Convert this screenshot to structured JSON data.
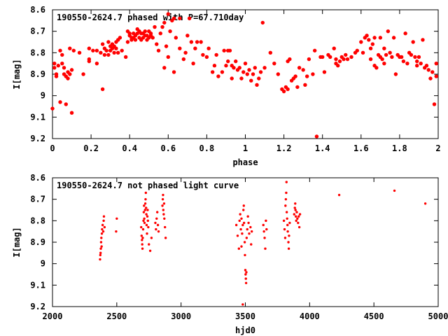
{
  "chart_data": [
    {
      "type": "scatter",
      "title": "190550-2624.7 phased with P=67.710day",
      "xlabel": "phase",
      "ylabel": "I[mag]",
      "xlim": [
        0,
        2
      ],
      "ylim": [
        9.2,
        8.6
      ],
      "y_inverted": true,
      "xticks": [
        "0",
        "0.2",
        "0.4",
        "0.6",
        "0.8",
        "1",
        "1.2",
        "1.4",
        "1.6",
        "1.8",
        "2"
      ],
      "xtick_values": [
        0,
        0.2,
        0.4,
        0.6,
        0.8,
        1.0,
        1.2,
        1.4,
        1.6,
        1.8,
        2.0
      ],
      "yticks": [
        "8.6",
        "8.7",
        "8.8",
        "8.9",
        "9",
        "9.1",
        "9.2"
      ],
      "ytick_values": [
        8.6,
        8.7,
        8.8,
        8.9,
        9.0,
        9.1,
        9.2
      ],
      "marker_color": "#ff0000",
      "marker": "filled-dot",
      "points": [
        [
          0.0,
          9.06
        ],
        [
          0.01,
          8.85
        ],
        [
          0.01,
          8.87
        ],
        [
          0.02,
          8.9
        ],
        [
          0.02,
          8.91
        ],
        [
          0.03,
          8.86
        ],
        [
          0.04,
          9.03
        ],
        [
          0.04,
          8.79
        ],
        [
          0.05,
          8.85
        ],
        [
          0.05,
          8.81
        ],
        [
          0.06,
          8.87
        ],
        [
          0.06,
          8.9
        ],
        [
          0.07,
          9.04
        ],
        [
          0.07,
          8.91
        ],
        [
          0.08,
          8.92
        ],
        [
          0.08,
          8.89
        ],
        [
          0.09,
          8.78
        ],
        [
          0.09,
          8.9
        ],
        [
          0.1,
          9.08
        ],
        [
          0.1,
          8.88
        ],
        [
          0.11,
          8.79
        ],
        [
          0.14,
          8.8
        ],
        [
          0.16,
          8.9
        ],
        [
          0.19,
          8.78
        ],
        [
          0.19,
          8.83
        ],
        [
          0.19,
          8.84
        ],
        [
          0.21,
          8.79
        ],
        [
          0.23,
          8.79
        ],
        [
          0.23,
          8.85
        ],
        [
          0.25,
          8.8
        ],
        [
          0.26,
          8.97
        ],
        [
          0.26,
          8.76
        ],
        [
          0.27,
          8.81
        ],
        [
          0.27,
          8.78
        ],
        [
          0.28,
          8.79
        ],
        [
          0.29,
          8.75
        ],
        [
          0.29,
          8.81
        ],
        [
          0.3,
          8.77
        ],
        [
          0.3,
          8.79
        ],
        [
          0.31,
          8.76
        ],
        [
          0.31,
          8.78
        ],
        [
          0.32,
          8.8
        ],
        [
          0.32,
          8.77
        ],
        [
          0.33,
          8.75
        ],
        [
          0.33,
          8.78
        ],
        [
          0.34,
          8.8
        ],
        [
          0.34,
          8.74
        ],
        [
          0.35,
          8.73
        ],
        [
          0.36,
          8.79
        ],
        [
          0.38,
          8.82
        ],
        [
          0.39,
          8.75
        ],
        [
          0.39,
          8.7
        ],
        [
          0.4,
          8.71
        ],
        [
          0.4,
          8.72
        ],
        [
          0.41,
          8.73
        ],
        [
          0.41,
          8.74
        ],
        [
          0.42,
          8.71
        ],
        [
          0.42,
          8.73
        ],
        [
          0.43,
          8.74
        ],
        [
          0.43,
          8.72
        ],
        [
          0.44,
          8.69
        ],
        [
          0.44,
          8.71
        ],
        [
          0.45,
          8.7
        ],
        [
          0.45,
          8.73
        ],
        [
          0.46,
          8.74
        ],
        [
          0.46,
          8.71
        ],
        [
          0.47,
          8.73
        ],
        [
          0.47,
          8.71
        ],
        [
          0.48,
          8.72
        ],
        [
          0.48,
          8.7
        ],
        [
          0.49,
          8.72
        ],
        [
          0.49,
          8.74
        ],
        [
          0.5,
          8.7
        ],
        [
          0.5,
          8.73
        ],
        [
          0.51,
          8.71
        ],
        [
          0.51,
          8.72
        ],
        [
          0.52,
          8.73
        ],
        [
          0.53,
          8.68
        ],
        [
          0.54,
          8.76
        ],
        [
          0.55,
          8.79
        ],
        [
          0.56,
          8.71
        ],
        [
          0.57,
          8.68
        ],
        [
          0.58,
          8.87
        ],
        [
          0.58,
          8.66
        ],
        [
          0.59,
          8.77
        ],
        [
          0.6,
          8.82
        ],
        [
          0.6,
          8.62
        ],
        [
          0.61,
          8.7
        ],
        [
          0.62,
          8.65
        ],
        [
          0.63,
          8.64
        ],
        [
          0.63,
          8.89
        ],
        [
          0.64,
          8.73
        ],
        [
          0.66,
          8.64
        ],
        [
          0.66,
          8.78
        ],
        [
          0.68,
          8.83
        ],
        [
          0.69,
          8.8
        ],
        [
          0.7,
          8.72
        ],
        [
          0.71,
          8.64
        ],
        [
          0.72,
          8.75
        ],
        [
          0.73,
          8.85
        ],
        [
          0.74,
          8.78
        ],
        [
          0.75,
          8.75
        ],
        [
          0.77,
          8.75
        ],
        [
          0.78,
          8.81
        ],
        [
          0.8,
          8.82
        ],
        [
          0.81,
          8.78
        ],
        [
          0.83,
          8.89
        ],
        [
          0.84,
          8.86
        ],
        [
          0.85,
          8.81
        ],
        [
          0.86,
          8.91
        ],
        [
          0.88,
          8.89
        ],
        [
          0.89,
          8.79
        ],
        [
          0.9,
          8.86
        ],
        [
          0.91,
          8.79
        ],
        [
          0.91,
          8.84
        ],
        [
          0.92,
          8.79
        ],
        [
          0.93,
          8.86
        ],
        [
          0.93,
          8.92
        ],
        [
          0.94,
          8.87
        ],
        [
          0.95,
          8.84
        ],
        [
          0.96,
          8.88
        ],
        [
          0.97,
          8.87
        ],
        [
          0.98,
          8.92
        ],
        [
          0.99,
          8.89
        ],
        [
          1.0,
          8.85
        ],
        [
          1.01,
          8.9
        ],
        [
          1.02,
          8.88
        ],
        [
          1.03,
          8.93
        ],
        [
          1.04,
          8.9
        ],
        [
          1.05,
          8.87
        ],
        [
          1.06,
          8.95
        ],
        [
          1.07,
          8.92
        ],
        [
          1.08,
          8.89
        ],
        [
          1.09,
          8.66
        ],
        [
          1.1,
          8.87
        ],
        [
          1.13,
          8.8
        ],
        [
          1.15,
          8.85
        ],
        [
          1.17,
          8.9
        ],
        [
          1.19,
          8.97
        ],
        [
          1.2,
          8.98
        ],
        [
          1.21,
          8.96
        ],
        [
          1.22,
          8.84
        ],
        [
          1.22,
          8.97
        ],
        [
          1.23,
          8.83
        ],
        [
          1.24,
          8.93
        ],
        [
          1.25,
          8.92
        ],
        [
          1.26,
          8.91
        ],
        [
          1.27,
          8.96
        ],
        [
          1.28,
          8.87
        ],
        [
          1.3,
          8.88
        ],
        [
          1.31,
          8.95
        ],
        [
          1.32,
          8.91
        ],
        [
          1.33,
          8.83
        ],
        [
          1.35,
          8.9
        ],
        [
          1.36,
          8.79
        ],
        [
          1.37,
          9.19
        ],
        [
          1.39,
          8.82
        ],
        [
          1.4,
          8.82
        ],
        [
          1.41,
          8.89
        ],
        [
          1.43,
          8.81
        ],
        [
          1.44,
          8.82
        ],
        [
          1.46,
          8.78
        ],
        [
          1.47,
          8.83
        ],
        [
          1.47,
          8.85
        ],
        [
          1.48,
          8.86
        ],
        [
          1.49,
          8.84
        ],
        [
          1.5,
          8.82
        ],
        [
          1.51,
          8.83
        ],
        [
          1.52,
          8.81
        ],
        [
          1.53,
          8.83
        ],
        [
          1.55,
          8.82
        ],
        [
          1.57,
          8.8
        ],
        [
          1.58,
          8.79
        ],
        [
          1.6,
          8.75
        ],
        [
          1.61,
          8.8
        ],
        [
          1.62,
          8.73
        ],
        [
          1.63,
          8.72
        ],
        [
          1.64,
          8.74
        ],
        [
          1.65,
          8.78
        ],
        [
          1.65,
          8.83
        ],
        [
          1.66,
          8.76
        ],
        [
          1.67,
          8.86
        ],
        [
          1.67,
          8.73
        ],
        [
          1.68,
          8.87
        ],
        [
          1.69,
          8.81
        ],
        [
          1.7,
          8.82
        ],
        [
          1.7,
          8.73
        ],
        [
          1.71,
          8.83
        ],
        [
          1.72,
          8.78
        ],
        [
          1.72,
          8.85
        ],
        [
          1.73,
          8.81
        ],
        [
          1.74,
          8.7
        ],
        [
          1.75,
          8.8
        ],
        [
          1.76,
          8.82
        ],
        [
          1.77,
          8.73
        ],
        [
          1.78,
          8.9
        ],
        [
          1.79,
          8.81
        ],
        [
          1.8,
          8.82
        ],
        [
          1.81,
          8.82
        ],
        [
          1.82,
          8.84
        ],
        [
          1.83,
          8.71
        ],
        [
          1.84,
          8.85
        ],
        [
          1.85,
          8.8
        ],
        [
          1.86,
          8.81
        ],
        [
          1.87,
          8.75
        ],
        [
          1.88,
          8.82
        ],
        [
          1.89,
          8.86
        ],
        [
          1.89,
          8.84
        ],
        [
          1.9,
          8.82
        ],
        [
          1.91,
          8.85
        ],
        [
          1.92,
          8.74
        ],
        [
          1.93,
          8.87
        ],
        [
          1.94,
          8.86
        ],
        [
          1.95,
          8.88
        ],
        [
          1.96,
          8.92
        ],
        [
          1.97,
          8.89
        ],
        [
          1.98,
          9.04
        ],
        [
          1.99,
          8.91
        ],
        [
          1.99,
          8.85
        ]
      ]
    },
    {
      "type": "scatter",
      "title": "190550-2624.7 not phased light curve",
      "xlabel": "hjd0",
      "ylabel": "I[mag]",
      "xlim": [
        2000,
        5000
      ],
      "ylim": [
        9.2,
        8.6
      ],
      "y_inverted": true,
      "xticks": [
        "2000",
        "2500",
        "3000",
        "3500",
        "4000",
        "4500",
        "5000"
      ],
      "xtick_values": [
        2000,
        2500,
        3000,
        3500,
        4000,
        4500,
        5000
      ],
      "yticks": [
        "8.6",
        "8.7",
        "8.8",
        "8.9",
        "9",
        "9.1",
        "9.2"
      ],
      "ytick_values": [
        8.6,
        8.7,
        8.8,
        8.9,
        9.0,
        9.1,
        9.2
      ],
      "marker_color": "#ff0000",
      "marker": "small-dot",
      "points": [
        [
          2370,
          8.98
        ],
        [
          2372,
          8.96
        ],
        [
          2374,
          8.95
        ],
        [
          2376,
          8.93
        ],
        [
          2378,
          8.9
        ],
        [
          2380,
          8.88
        ],
        [
          2382,
          8.92
        ],
        [
          2384,
          8.86
        ],
        [
          2386,
          8.84
        ],
        [
          2390,
          8.82
        ],
        [
          2395,
          8.85
        ],
        [
          2398,
          8.8
        ],
        [
          2400,
          8.78
        ],
        [
          2405,
          8.83
        ],
        [
          2495,
          8.85
        ],
        [
          2500,
          8.79
        ],
        [
          2690,
          8.83
        ],
        [
          2693,
          8.87
        ],
        [
          2696,
          8.89
        ],
        [
          2698,
          8.91
        ],
        [
          2700,
          8.93
        ],
        [
          2702,
          8.88
        ],
        [
          2705,
          8.84
        ],
        [
          2708,
          8.8
        ],
        [
          2710,
          8.76
        ],
        [
          2712,
          8.73
        ],
        [
          2714,
          8.79
        ],
        [
          2716,
          8.81
        ],
        [
          2720,
          8.75
        ],
        [
          2722,
          8.72
        ],
        [
          2724,
          8.7
        ],
        [
          2726,
          8.67
        ],
        [
          2728,
          8.74
        ],
        [
          2730,
          8.77
        ],
        [
          2732,
          8.82
        ],
        [
          2735,
          8.86
        ],
        [
          2738,
          8.78
        ],
        [
          2740,
          8.75
        ],
        [
          2742,
          8.8
        ],
        [
          2745,
          8.83
        ],
        [
          2750,
          8.91
        ],
        [
          2760,
          8.94
        ],
        [
          2770,
          8.88
        ],
        [
          2800,
          8.81
        ],
        [
          2805,
          8.84
        ],
        [
          2810,
          8.79
        ],
        [
          2815,
          8.76
        ],
        [
          2820,
          8.82
        ],
        [
          2825,
          8.85
        ],
        [
          2855,
          8.73
        ],
        [
          2858,
          8.7
        ],
        [
          2860,
          8.68
        ],
        [
          2862,
          8.75
        ],
        [
          2865,
          8.77
        ],
        [
          2868,
          8.72
        ],
        [
          2870,
          8.79
        ],
        [
          2875,
          8.83
        ],
        [
          2880,
          8.88
        ],
        [
          3430,
          8.82
        ],
        [
          3440,
          8.87
        ],
        [
          3450,
          8.93
        ],
        [
          3455,
          8.8
        ],
        [
          3460,
          8.77
        ],
        [
          3465,
          8.84
        ],
        [
          3470,
          8.79
        ],
        [
          3475,
          8.86
        ],
        [
          3480,
          8.82
        ],
        [
          3485,
          8.75
        ],
        [
          3488,
          8.73
        ],
        [
          3490,
          8.81
        ],
        [
          3495,
          8.9
        ],
        [
          3497,
          8.96
        ],
        [
          3500,
          9.03
        ],
        [
          3502,
          9.05
        ],
        [
          3504,
          9.07
        ],
        [
          3506,
          9.09
        ],
        [
          3508,
          9.04
        ],
        [
          3510,
          8.88
        ],
        [
          3515,
          8.84
        ],
        [
          3520,
          8.78
        ],
        [
          3525,
          8.81
        ],
        [
          3530,
          8.86
        ],
        [
          3540,
          8.83
        ],
        [
          3545,
          8.91
        ],
        [
          3550,
          8.85
        ],
        [
          3480,
          9.19
        ],
        [
          3470,
          8.92
        ],
        [
          3640,
          8.82
        ],
        [
          3645,
          8.85
        ],
        [
          3650,
          8.88
        ],
        [
          3655,
          8.93
        ],
        [
          3660,
          8.8
        ],
        [
          3665,
          8.84
        ],
        [
          3800,
          8.8
        ],
        [
          3805,
          8.84
        ],
        [
          3810,
          8.88
        ],
        [
          3812,
          8.73
        ],
        [
          3815,
          8.7
        ],
        [
          3818,
          8.67
        ],
        [
          3820,
          8.62
        ],
        [
          3822,
          8.76
        ],
        [
          3825,
          8.79
        ],
        [
          3828,
          8.82
        ],
        [
          3830,
          8.85
        ],
        [
          3835,
          8.9
        ],
        [
          3838,
          8.93
        ],
        [
          3840,
          8.87
        ],
        [
          3845,
          8.81
        ],
        [
          3880,
          8.77
        ],
        [
          3885,
          8.74
        ],
        [
          3888,
          8.72
        ],
        [
          3890,
          8.75
        ],
        [
          3893,
          8.78
        ],
        [
          3896,
          8.8
        ],
        [
          3900,
          8.76
        ],
        [
          3905,
          8.79
        ],
        [
          3910,
          8.81
        ],
        [
          3915,
          8.78
        ],
        [
          3920,
          8.83
        ],
        [
          3925,
          8.77
        ],
        [
          4230,
          8.68
        ],
        [
          4660,
          8.66
        ],
        [
          4900,
          8.72
        ]
      ]
    }
  ]
}
